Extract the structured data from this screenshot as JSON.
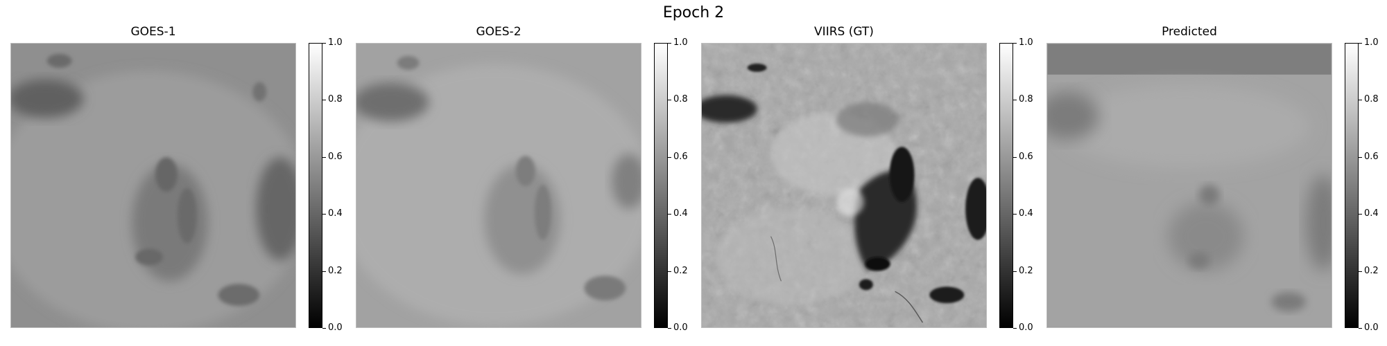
{
  "figure": {
    "title": "Epoch 2",
    "panels": [
      {
        "id": "goes1",
        "title": "GOES-1"
      },
      {
        "id": "goes2",
        "title": "GOES-2"
      },
      {
        "id": "viirs",
        "title": "VIIRS (GT)"
      },
      {
        "id": "pred",
        "title": "Predicted"
      }
    ],
    "colorbar": {
      "colormap": "gray",
      "range": [
        0.0,
        1.0
      ],
      "ticks": [
        "0.0",
        "0.2",
        "0.4",
        "0.6",
        "0.8",
        "1.0"
      ]
    }
  }
}
